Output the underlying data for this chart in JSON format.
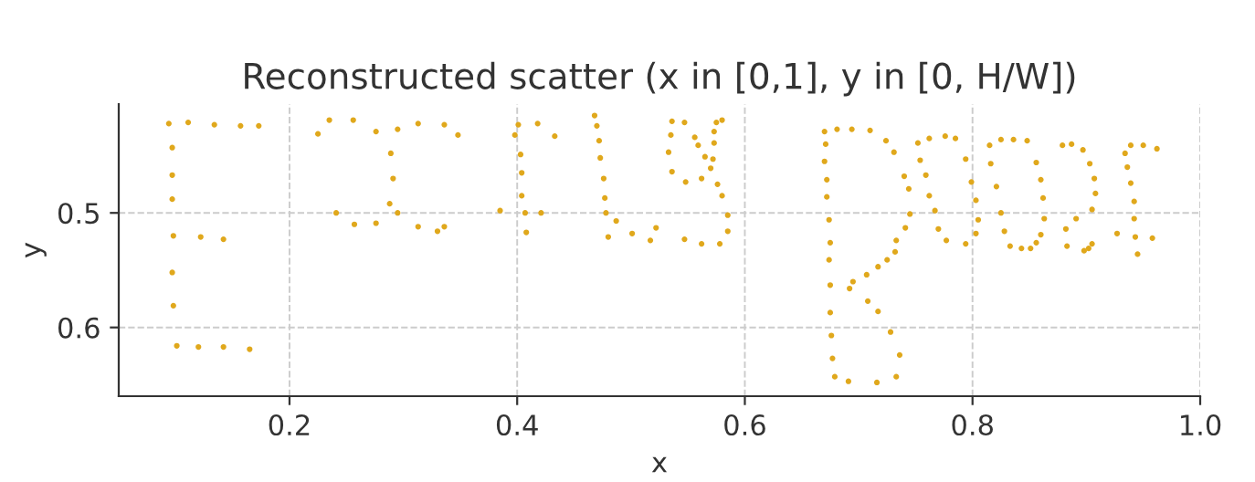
{
  "chart_data": {
    "type": "scatter",
    "title": "Reconstructed scatter (x in [0,1], y in [0, H/W])",
    "xlabel": "x",
    "ylabel": "y",
    "xlim": [
      0.05,
      1.0
    ],
    "ylim": [
      0.66,
      0.405
    ],
    "xticks": [
      {
        "value": 0.2,
        "label": "0.2"
      },
      {
        "value": 0.4,
        "label": "0.4"
      },
      {
        "value": 0.6,
        "label": "0.6"
      },
      {
        "value": 0.8,
        "label": "0.8"
      },
      {
        "value": 1.0,
        "label": "1.0"
      }
    ],
    "yticks": [
      {
        "value": 0.5,
        "label": "0.5"
      },
      {
        "value": 0.6,
        "label": "0.6"
      }
    ],
    "grid": true,
    "marker": "circle",
    "series": [
      {
        "color": "#e0a81c",
        "x": [
          0.094,
          0.111,
          0.134,
          0.157,
          0.173,
          0.097,
          0.097,
          0.097,
          0.098,
          0.122,
          0.142,
          0.097,
          0.098,
          0.101,
          0.12,
          0.142,
          0.165,
          0.225,
          0.235,
          0.256,
          0.241,
          0.257,
          0.276,
          0.276,
          0.295,
          0.313,
          0.336,
          0.348,
          0.289,
          0.291,
          0.288,
          0.295,
          0.313,
          0.33,
          0.336,
          0.385,
          0.401,
          0.418,
          0.398,
          0.433,
          0.403,
          0.404,
          0.404,
          0.407,
          0.421,
          0.408,
          0.468,
          0.47,
          0.472,
          0.473,
          0.476,
          0.477,
          0.478,
          0.487,
          0.48,
          0.501,
          0.517,
          0.522,
          0.536,
          0.547,
          0.535,
          0.556,
          0.559,
          0.573,
          0.575,
          0.58,
          0.573,
          0.533,
          0.565,
          0.572,
          0.536,
          0.548,
          0.562,
          0.57,
          0.576,
          0.58,
          0.585,
          0.585,
          0.547,
          0.562,
          0.578,
          0.67,
          0.681,
          0.694,
          0.71,
          0.724,
          0.731,
          0.671,
          0.67,
          0.672,
          0.672,
          0.674,
          0.675,
          0.674,
          0.675,
          0.675,
          0.676,
          0.677,
          0.679,
          0.691,
          0.716,
          0.733,
          0.736,
          0.728,
          0.717,
          0.708,
          0.692,
          0.695,
          0.707,
          0.717,
          0.725,
          0.732,
          0.733,
          0.741,
          0.745,
          0.744,
          0.74,
          0.752,
          0.762,
          0.776,
          0.785,
          0.754,
          0.759,
          0.762,
          0.767,
          0.77,
          0.777,
          0.794,
          0.794,
          0.799,
          0.803,
          0.805,
          0.803,
          0.815,
          0.825,
          0.836,
          0.848,
          0.816,
          0.821,
          0.825,
          0.828,
          0.833,
          0.843,
          0.851,
          0.856,
          0.86,
          0.863,
          0.862,
          0.86,
          0.856,
          0.879,
          0.887,
          0.897,
          0.903,
          0.907,
          0.908,
          0.905,
          0.891,
          0.882,
          0.883,
          0.898,
          0.902,
          0.905,
          0.934,
          0.939,
          0.95,
          0.962,
          0.936,
          0.939,
          0.942,
          0.942,
          0.927,
          0.943,
          0.958,
          0.945
        ],
        "values": [
          0.422,
          0.421,
          0.423,
          0.424,
          0.424,
          0.443,
          0.467,
          0.488,
          0.52,
          0.521,
          0.523,
          0.552,
          0.581,
          0.616,
          0.617,
          0.617,
          0.619,
          0.431,
          0.419,
          0.419,
          0.5,
          0.51,
          0.509,
          0.429,
          0.427,
          0.422,
          0.423,
          0.432,
          0.448,
          0.47,
          0.492,
          0.5,
          0.512,
          0.516,
          0.512,
          0.498,
          0.423,
          0.422,
          0.432,
          0.433,
          0.449,
          0.465,
          0.485,
          0.5,
          0.5,
          0.517,
          0.415,
          0.424,
          0.437,
          0.452,
          0.47,
          0.487,
          0.5,
          0.507,
          0.521,
          0.518,
          0.524,
          0.513,
          0.42,
          0.421,
          0.432,
          0.434,
          0.441,
          0.429,
          0.421,
          0.419,
          0.439,
          0.447,
          0.451,
          0.453,
          0.464,
          0.473,
          0.47,
          0.461,
          0.475,
          0.485,
          0.502,
          0.516,
          0.523,
          0.527,
          0.527,
          0.429,
          0.427,
          0.427,
          0.428,
          0.437,
          0.447,
          0.44,
          0.455,
          0.471,
          0.486,
          0.506,
          0.526,
          0.541,
          0.563,
          0.587,
          0.607,
          0.627,
          0.643,
          0.647,
          0.648,
          0.643,
          0.624,
          0.604,
          0.586,
          0.577,
          0.566,
          0.56,
          0.554,
          0.547,
          0.541,
          0.534,
          0.524,
          0.513,
          0.501,
          0.479,
          0.468,
          0.439,
          0.435,
          0.433,
          0.435,
          0.454,
          0.467,
          0.485,
          0.498,
          0.514,
          0.524,
          0.527,
          0.453,
          0.473,
          0.489,
          0.506,
          0.518,
          0.441,
          0.436,
          0.436,
          0.437,
          0.457,
          0.477,
          0.5,
          0.516,
          0.529,
          0.531,
          0.531,
          0.526,
          0.519,
          0.505,
          0.487,
          0.471,
          0.456,
          0.441,
          0.44,
          0.445,
          0.457,
          0.47,
          0.483,
          0.497,
          0.505,
          0.514,
          0.529,
          0.533,
          0.531,
          0.527,
          0.448,
          0.441,
          0.441,
          0.444,
          0.46,
          0.474,
          0.49,
          0.505,
          0.518,
          0.521,
          0.522,
          0.536
        ]
      }
    ]
  }
}
